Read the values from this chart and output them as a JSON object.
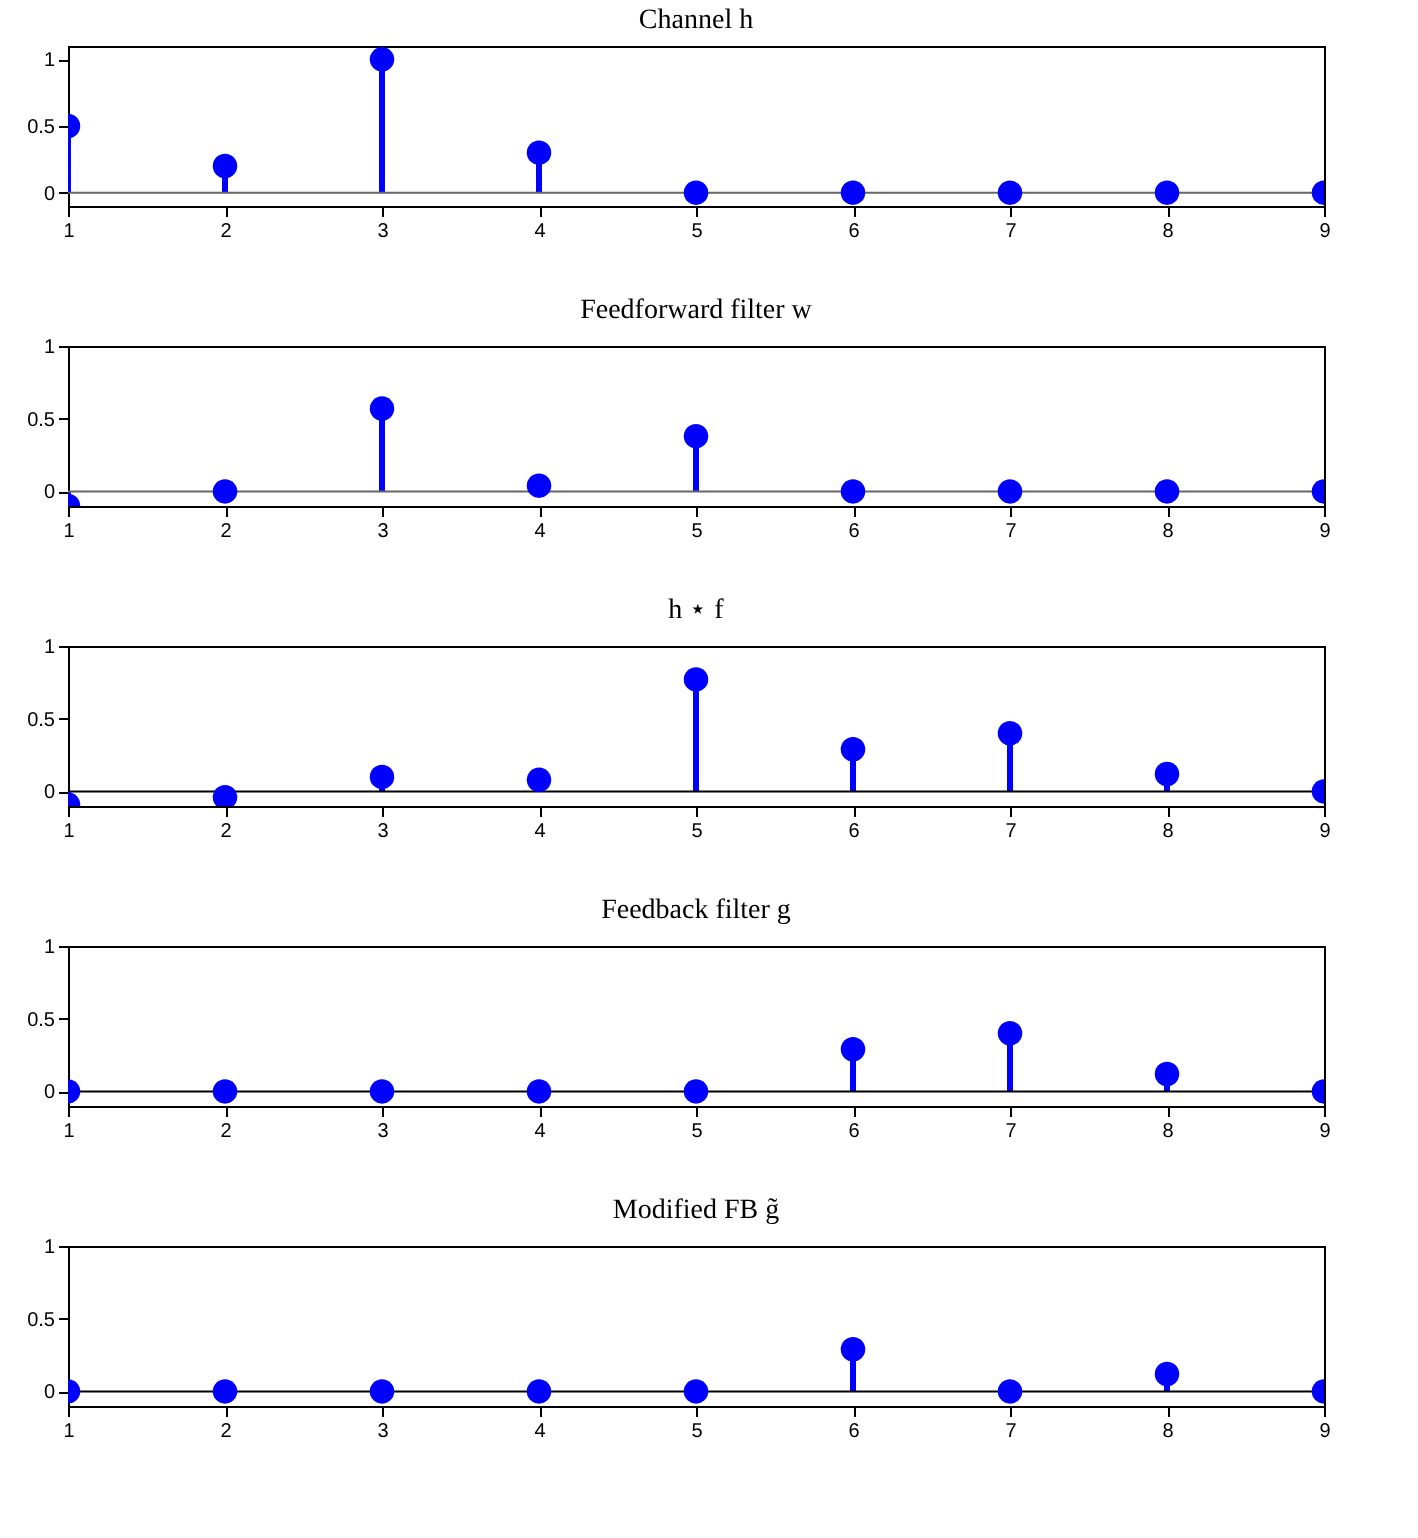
{
  "chart_data": [
    {
      "type": "lollipop",
      "title": "Channel h",
      "x": [
        1,
        2,
        3,
        4,
        5,
        6,
        7,
        8,
        9
      ],
      "values": [
        0.5,
        0.2,
        1,
        0.3,
        0,
        0,
        0,
        0,
        0
      ],
      "color": "#0000ff",
      "marker": "circle",
      "xlim": [
        1,
        9
      ],
      "xticks": [
        1,
        2,
        3,
        4,
        5,
        6,
        7,
        8,
        9
      ],
      "ylim": [
        -0.1,
        1.1
      ],
      "yticks": [
        0,
        0.5,
        1
      ],
      "grid": false,
      "ref_lines": [
        {
          "axis": "y",
          "value": 0,
          "color": "#666666"
        }
      ]
    },
    {
      "type": "lollipop",
      "title": "Feedforward filter w",
      "x": [
        1,
        2,
        3,
        4,
        5,
        6,
        7,
        8,
        9
      ],
      "values": [
        -0.1,
        0,
        0.57,
        0.04,
        0.38,
        0,
        0,
        0,
        0
      ],
      "color": "#0000ff",
      "marker": "circle",
      "xlim": [
        1,
        9
      ],
      "xticks": [
        1,
        2,
        3,
        4,
        5,
        6,
        7,
        8,
        9
      ],
      "ylim": [
        -0.1,
        1
      ],
      "yticks": [
        0,
        0.5,
        1
      ],
      "grid": false,
      "ref_lines": [
        {
          "axis": "y",
          "value": 0,
          "color": "#666666"
        }
      ]
    },
    {
      "type": "lollipop",
      "title": "h ⋆ f",
      "x": [
        1,
        2,
        3,
        4,
        5,
        6,
        7,
        8,
        9
      ],
      "values": [
        -0.09,
        -0.04,
        0.1,
        0.08,
        0.77,
        0.29,
        0.4,
        0.12,
        0
      ],
      "color": "#0000ff",
      "marker": "circle",
      "xlim": [
        1,
        9
      ],
      "xticks": [
        1,
        2,
        3,
        4,
        5,
        6,
        7,
        8,
        9
      ],
      "ylim": [
        -0.1,
        1
      ],
      "yticks": [
        0,
        0.5,
        1
      ],
      "grid": false,
      "ref_lines": [
        {
          "axis": "y",
          "value": 0,
          "color": "#000000"
        }
      ]
    },
    {
      "type": "lollipop",
      "title": "Feedback filter g",
      "x": [
        1,
        2,
        3,
        4,
        5,
        6,
        7,
        8,
        9
      ],
      "values": [
        0,
        0,
        0,
        0,
        0,
        0.29,
        0.4,
        0.12,
        0
      ],
      "color": "#0000ff",
      "marker": "circle",
      "xlim": [
        1,
        9
      ],
      "xticks": [
        1,
        2,
        3,
        4,
        5,
        6,
        7,
        8,
        9
      ],
      "ylim": [
        -0.1,
        1
      ],
      "yticks": [
        0,
        0.5,
        1
      ],
      "grid": false,
      "ref_lines": [
        {
          "axis": "y",
          "value": 0,
          "color": "#000000"
        }
      ]
    },
    {
      "type": "lollipop",
      "title": "Modified FB g̃",
      "x": [
        1,
        2,
        3,
        4,
        5,
        6,
        7,
        8,
        9
      ],
      "values": [
        0,
        0,
        0,
        0,
        0,
        0.29,
        0,
        0.12,
        0
      ],
      "color": "#0000ff",
      "marker": "circle",
      "xlim": [
        1,
        9
      ],
      "xticks": [
        1,
        2,
        3,
        4,
        5,
        6,
        7,
        8,
        9
      ],
      "ylim": [
        -0.1,
        1
      ],
      "yticks": [
        0,
        0.5,
        1
      ],
      "grid": false,
      "ref_lines": [
        {
          "axis": "y",
          "value": 0,
          "color": "#000000"
        }
      ]
    }
  ]
}
